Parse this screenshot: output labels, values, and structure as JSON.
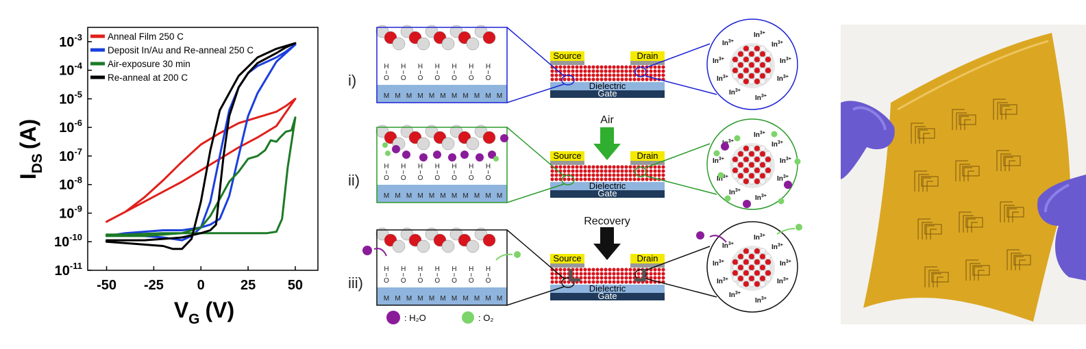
{
  "chart_data": {
    "type": "line",
    "xlabel": "V",
    "xlabel_sub": "G",
    "xlabel_unit": "(V)",
    "ylabel": "I",
    "ylabel_sub": "DS",
    "ylabel_unit": "(A)",
    "xlim": [
      -60,
      62
    ],
    "ylim_log10": [
      -11,
      -2.5
    ],
    "y_scale": "log",
    "x_ticks": [
      "-50",
      "-25",
      "0",
      "25",
      "50"
    ],
    "x_tick_values": [
      -50,
      -25,
      0,
      25,
      50
    ],
    "y_ticks": [
      "10-11",
      "10-10",
      "10-9",
      "10-8",
      "10-7",
      "10-6",
      "10-5",
      "10-4",
      "10-3"
    ],
    "y_tick_exponents": [
      -11,
      -10,
      -9,
      -8,
      -7,
      -6,
      -5,
      -4,
      -3
    ],
    "legend_position": "top-left",
    "series": [
      {
        "name": "Anneal Film 250 C",
        "color": "#e0201b",
        "forward": [
          [
            -50,
            -9.3
          ],
          [
            -40,
            -8.95
          ],
          [
            -30,
            -8.6
          ],
          [
            -20,
            -8.25
          ],
          [
            -10,
            -7.9
          ],
          [
            0,
            -7.5
          ],
          [
            10,
            -7.1
          ],
          [
            20,
            -6.7
          ],
          [
            30,
            -6.35
          ],
          [
            40,
            -5.95
          ],
          [
            50,
            -5.0
          ]
        ],
        "reverse": [
          [
            50,
            -5.0
          ],
          [
            45,
            -5.25
          ],
          [
            40,
            -5.45
          ],
          [
            30,
            -5.65
          ],
          [
            20,
            -5.85
          ],
          [
            10,
            -6.2
          ],
          [
            0,
            -6.6
          ],
          [
            -10,
            -7.2
          ],
          [
            -20,
            -7.85
          ],
          [
            -30,
            -8.45
          ],
          [
            -40,
            -8.95
          ],
          [
            -50,
            -9.3
          ]
        ]
      },
      {
        "name": "Deposit In/Au and Re-anneal 250 C",
        "color": "#1b3fdd",
        "forward": [
          [
            -50,
            -9.8
          ],
          [
            -40,
            -9.7
          ],
          [
            -30,
            -9.65
          ],
          [
            -20,
            -9.6
          ],
          [
            -10,
            -9.6
          ],
          [
            0,
            -9.5
          ],
          [
            5,
            -9.4
          ],
          [
            10,
            -9.2
          ],
          [
            15,
            -8.4
          ],
          [
            20,
            -7.0
          ],
          [
            25,
            -5.6
          ],
          [
            30,
            -4.8
          ],
          [
            40,
            -3.7
          ],
          [
            50,
            -3.1
          ]
        ],
        "reverse": [
          [
            50,
            -3.1
          ],
          [
            45,
            -3.35
          ],
          [
            40,
            -3.55
          ],
          [
            30,
            -3.85
          ],
          [
            25,
            -4.1
          ],
          [
            20,
            -4.6
          ],
          [
            15,
            -5.4
          ],
          [
            10,
            -7.0
          ],
          [
            5,
            -8.6
          ],
          [
            0,
            -9.5
          ],
          [
            -5,
            -9.8
          ],
          [
            -10,
            -9.95
          ],
          [
            -20,
            -9.85
          ],
          [
            -30,
            -9.8
          ],
          [
            -40,
            -9.75
          ],
          [
            -50,
            -9.8
          ]
        ]
      },
      {
        "name": "Air-exposure 30 min",
        "color": "#1d7a26",
        "forward": [
          [
            -50,
            -9.75
          ],
          [
            -40,
            -9.75
          ],
          [
            -20,
            -9.7
          ],
          [
            0,
            -9.7
          ],
          [
            20,
            -9.7
          ],
          [
            35,
            -9.7
          ],
          [
            40,
            -9.65
          ],
          [
            43,
            -9.2
          ],
          [
            46,
            -7.4
          ],
          [
            50,
            -5.65
          ]
        ],
        "reverse": [
          [
            50,
            -5.65
          ],
          [
            48,
            -6.1
          ],
          [
            45,
            -6.15
          ],
          [
            42,
            -6.35
          ],
          [
            40,
            -6.5
          ],
          [
            37,
            -6.45
          ],
          [
            34,
            -6.8
          ],
          [
            30,
            -7.0
          ],
          [
            25,
            -7.1
          ],
          [
            20,
            -7.55
          ],
          [
            15,
            -7.9
          ],
          [
            10,
            -8.5
          ],
          [
            5,
            -9.1
          ],
          [
            0,
            -9.5
          ],
          [
            -10,
            -9.7
          ],
          [
            -30,
            -9.8
          ],
          [
            -50,
            -9.8
          ]
        ]
      },
      {
        "name": "Re-anneal at 200 C",
        "color": "#000000",
        "forward": [
          [
            -50,
            -10.0
          ],
          [
            -40,
            -10.05
          ],
          [
            -30,
            -10.1
          ],
          [
            -20,
            -10.15
          ],
          [
            -15,
            -10.25
          ],
          [
            -10,
            -10.25
          ],
          [
            -5,
            -9.9
          ],
          [
            0,
            -8.6
          ],
          [
            5,
            -6.8
          ],
          [
            10,
            -5.4
          ],
          [
            20,
            -4.2
          ],
          [
            30,
            -3.55
          ],
          [
            40,
            -3.25
          ],
          [
            50,
            -3.05
          ]
        ],
        "reverse": [
          [
            50,
            -3.05
          ],
          [
            45,
            -3.2
          ],
          [
            40,
            -3.4
          ],
          [
            30,
            -3.75
          ],
          [
            25,
            -4.1
          ],
          [
            20,
            -4.6
          ],
          [
            15,
            -5.6
          ],
          [
            12,
            -7.0
          ],
          [
            10,
            -8.2
          ],
          [
            8,
            -9.4
          ],
          [
            5,
            -9.6
          ],
          [
            0,
            -9.7
          ],
          [
            -10,
            -9.85
          ],
          [
            -20,
            -9.9
          ],
          [
            -30,
            -9.95
          ],
          [
            -50,
            -9.95
          ]
        ]
      }
    ]
  },
  "schematic": {
    "rows": [
      {
        "label": "i)",
        "color": "#1b22d4"
      },
      {
        "label": "ii)",
        "color": "#2a9a2a"
      },
      {
        "label": "iii)",
        "color": "#111111"
      }
    ],
    "source_label": "Source",
    "drain_label": "Drain",
    "dielectric_label": "Dielectric",
    "gate_label": "Gate",
    "air_label": "Air",
    "recovery_label": "Recovery",
    "ion_label": "In",
    "ion_charge": "3+",
    "metal_label": "M",
    "hydroxyl_label": "H",
    "oxygen_label": "O",
    "legend_h2o": ": H₂O",
    "legend_o2": ": O₂",
    "colors": {
      "source_pad": "#f4ea00",
      "substrate": "#8fb4dd",
      "gate": "#1f3a5a",
      "h2o": "#8a1c9a",
      "o2": "#7cd46a",
      "oxide_red": "#d8141d"
    }
  },
  "photo": {
    "film_color": "#d8a20e",
    "glove_color": "#6b5ccf"
  }
}
